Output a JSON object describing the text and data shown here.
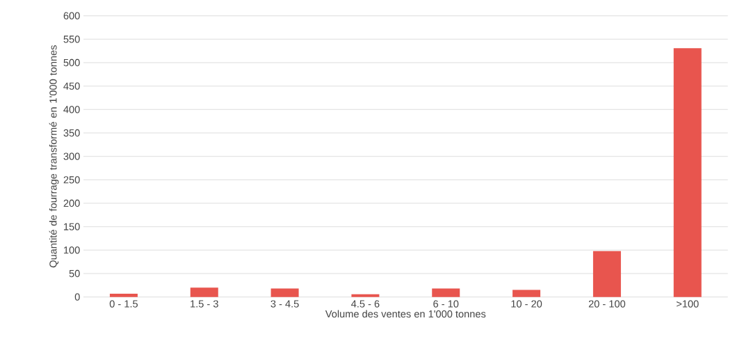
{
  "chart_data": {
    "type": "bar",
    "xlabel": "Volume des ventes en 1'000 tonnes",
    "ylabel": "Quantité de fourrage transformé en 1'000 tonnes",
    "categories": [
      "0 - 1.5",
      "1.5 - 3",
      "3 - 4.5",
      "4.5 - 6",
      "6 - 10",
      "10 - 20",
      "20 - 100",
      ">100"
    ],
    "values": [
      7,
      20,
      18,
      6,
      18,
      15,
      98,
      531
    ],
    "color": "#e8554e",
    "ylim": [
      0,
      600
    ],
    "yticks": [
      0,
      50,
      100,
      150,
      200,
      250,
      300,
      350,
      400,
      450,
      500,
      550,
      600
    ],
    "grid": "y"
  }
}
